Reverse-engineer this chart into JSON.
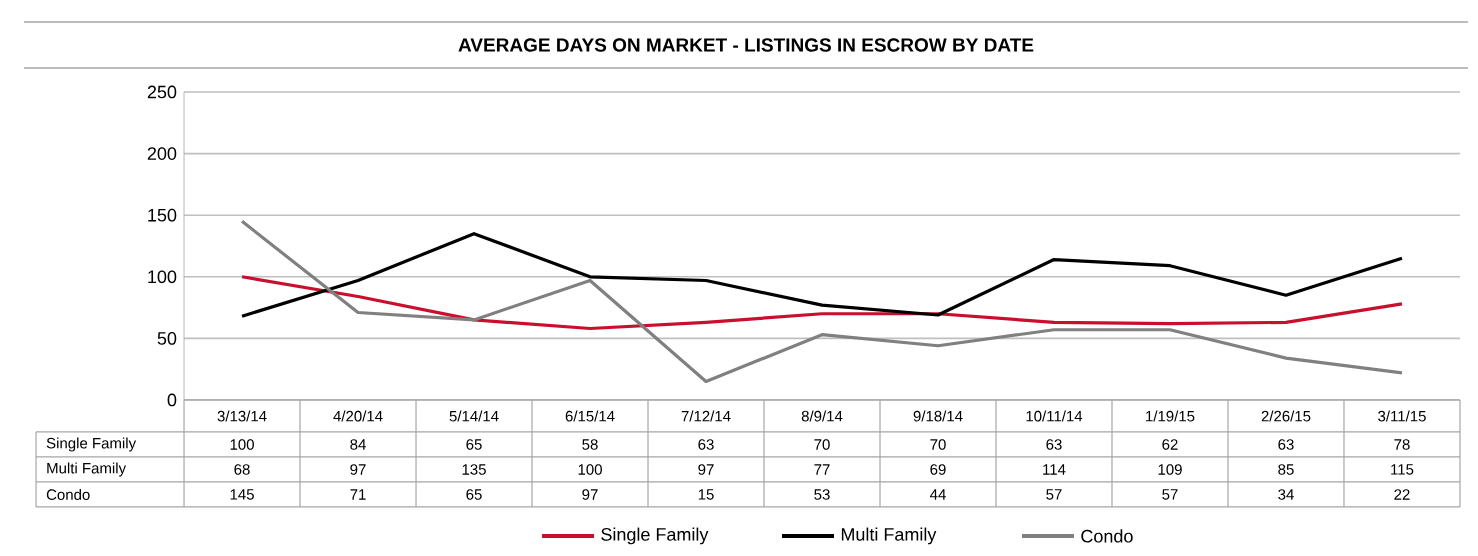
{
  "chart_data": {
    "type": "line",
    "title": "AVERAGE DAYS ON MARKET - LISTINGS IN ESCROW BY DATE",
    "categories": [
      "3/13/14",
      "4/20/14",
      "5/14/14",
      "6/15/14",
      "7/12/14",
      "8/9/14",
      "9/18/14",
      "10/11/14",
      "1/19/15",
      "2/26/15",
      "3/11/15"
    ],
    "series": [
      {
        "name": "Single Family",
        "color": "#c8102e",
        "values": [
          100,
          84,
          65,
          58,
          63,
          70,
          70,
          63,
          62,
          63,
          78
        ]
      },
      {
        "name": "Multi Family",
        "color": "#000000",
        "values": [
          68,
          97,
          135,
          100,
          97,
          77,
          69,
          114,
          109,
          85,
          115
        ]
      },
      {
        "name": "Condo",
        "color": "#808080",
        "values": [
          145,
          71,
          65,
          97,
          15,
          53,
          44,
          57,
          57,
          34,
          22
        ]
      }
    ],
    "ylim": [
      0,
      250
    ],
    "yticks": [
      0,
      50,
      100,
      150,
      200,
      250
    ],
    "grid": "y",
    "legend": "bottom",
    "data_labels": true,
    "marker": "none",
    "line_style": "solid"
  }
}
